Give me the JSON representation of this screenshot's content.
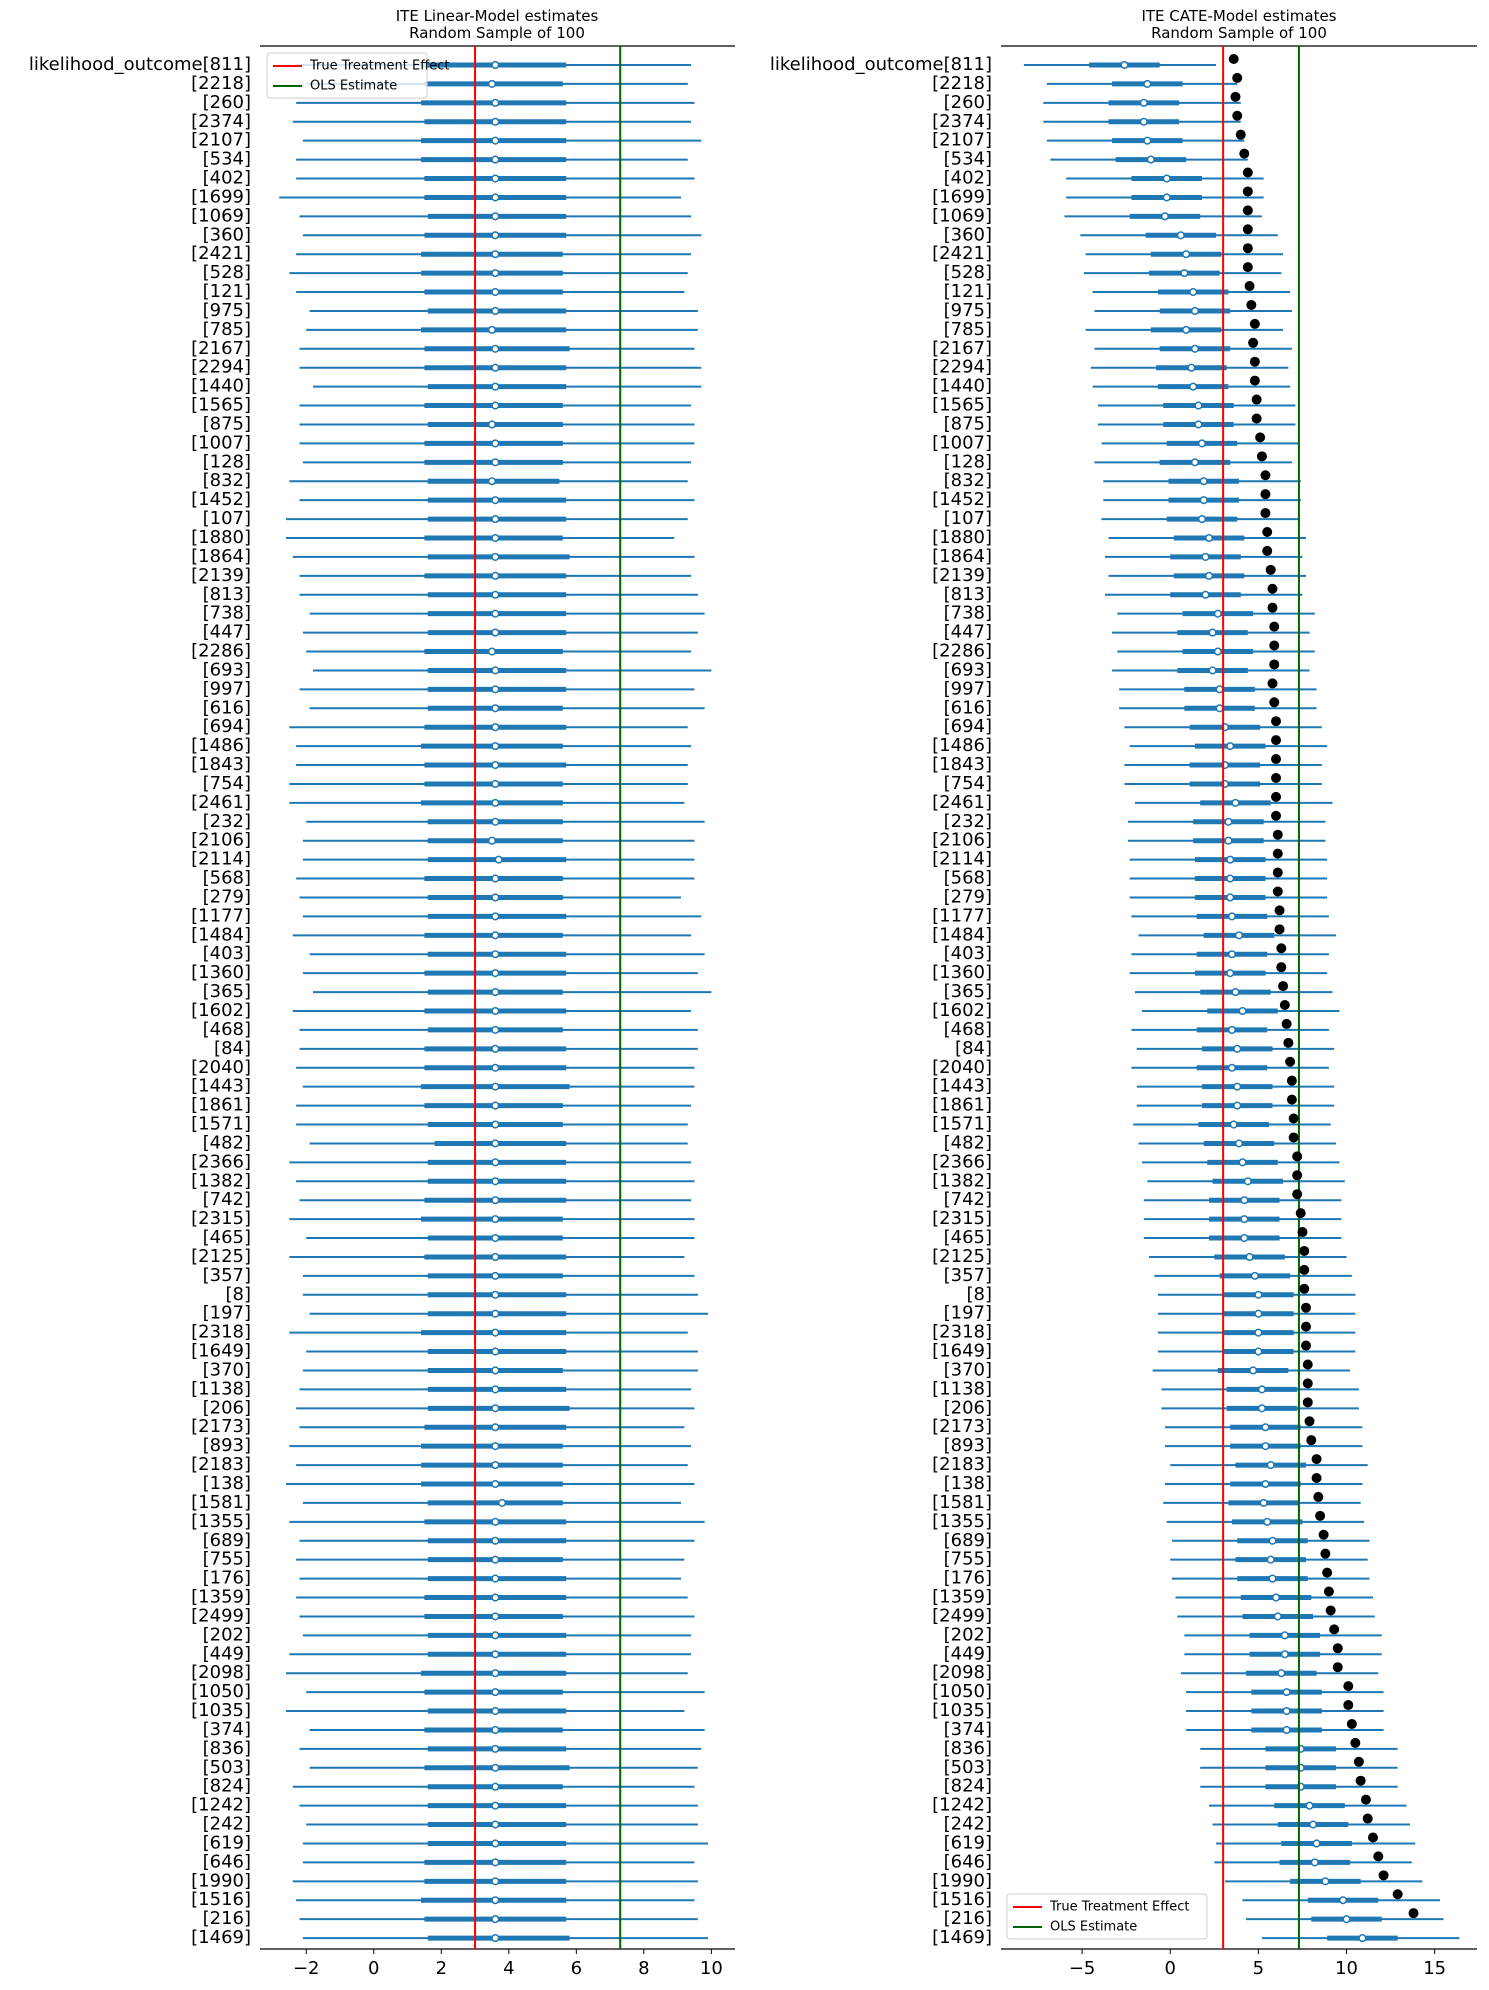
{
  "colors": {
    "interval": "#1f77b4",
    "true_effect_line": "#ff0000",
    "ols_line": "#006400",
    "true_dot": "#000000"
  },
  "legend_labels": {
    "true_effect": "True Treatment Effect",
    "ols": "OLS Estimate"
  },
  "chart_data": [
    {
      "type": "forest",
      "title": "ITE Linear-Model estimates\nRandom Sample of 100",
      "title_lines": [
        "ITE Linear-Model estimates",
        "Random Sample of 100"
      ],
      "legend_placement": "top-left",
      "xlim": [
        -3.37,
        10.7
      ],
      "xticks": [
        -2,
        0,
        2,
        4,
        6,
        8,
        10
      ],
      "xtick_labels": [
        "−2",
        "0",
        "2",
        "4",
        "6",
        "8",
        "10"
      ],
      "grid": false,
      "vlines": {
        "true_treatment_effect": 3.0,
        "ols_estimate": 7.3
      },
      "row_labels": [
        "likelihood_outcome[811]",
        "[2218]",
        "[260]",
        "[2374]",
        "[2107]",
        "[534]",
        "[402]",
        "[1699]",
        "[1069]",
        "[360]",
        "[2421]",
        "[528]",
        "[121]",
        "[975]",
        "[785]",
        "[2167]",
        "[2294]",
        "[1440]",
        "[1565]",
        "[875]",
        "[1007]",
        "[128]",
        "[832]",
        "[1452]",
        "[107]",
        "[1880]",
        "[1864]",
        "[2139]",
        "[813]",
        "[738]",
        "[447]",
        "[2286]",
        "[693]",
        "[997]",
        "[616]",
        "[694]",
        "[1486]",
        "[1843]",
        "[754]",
        "[2461]",
        "[232]",
        "[2106]",
        "[2114]",
        "[568]",
        "[279]",
        "[1177]",
        "[1484]",
        "[403]",
        "[1360]",
        "[365]",
        "[1602]",
        "[468]",
        "[84]",
        "[2040]",
        "[1443]",
        "[1861]",
        "[1571]",
        "[482]",
        "[2366]",
        "[1382]",
        "[742]",
        "[2315]",
        "[465]",
        "[2125]",
        "[357]",
        "[8]",
        "[197]",
        "[2318]",
        "[1649]",
        "[370]",
        "[1138]",
        "[206]",
        "[2173]",
        "[893]",
        "[2183]",
        "[138]",
        "[1581]",
        "[1355]",
        "[689]",
        "[755]",
        "[176]",
        "[1359]",
        "[2499]",
        "[202]",
        "[449]",
        "[2098]",
        "[1050]",
        "[1035]",
        "[374]",
        "[836]",
        "[503]",
        "[824]",
        "[1242]",
        "[242]",
        "[619]",
        "[646]",
        "[1990]",
        "[1516]",
        "[216]",
        "[1469]"
      ],
      "hdi_low": [
        -2.3,
        -2.0,
        -2.3,
        -2.4,
        -2.1,
        -2.3,
        -2.3,
        -2.8,
        -2.2,
        -2.1,
        -2.3,
        -2.5,
        -2.3,
        -1.9,
        -2.0,
        -2.2,
        -2.2,
        -1.8,
        -2.2,
        -2.2,
        -2.2,
        -2.1,
        -2.5,
        -2.2,
        -2.6,
        -2.6,
        -2.4,
        -2.2,
        -2.2,
        -1.9,
        -2.1,
        -2.0,
        -1.8,
        -2.2,
        -1.9,
        -2.5,
        -2.3,
        -2.3,
        -2.5,
        -2.5,
        -2.0,
        -2.1,
        -2.1,
        -2.3,
        -2.2,
        -2.1,
        -2.4,
        -1.9,
        -2.1,
        -1.8,
        -2.4,
        -2.2,
        -2.2,
        -2.3,
        -2.1,
        -2.3,
        -2.3,
        -1.9,
        -2.5,
        -2.3,
        -2.2,
        -2.5,
        -2.0,
        -2.5,
        -2.1,
        -2.1,
        -1.9,
        -2.5,
        -2.0,
        -2.1,
        -2.2,
        -2.3,
        -2.2,
        -2.5,
        -2.3,
        -2.6,
        -2.1,
        -2.5,
        -2.2,
        -2.3,
        -2.2,
        -2.3,
        -2.2,
        -2.1,
        -2.5,
        -2.6,
        -2.0,
        -2.6,
        -1.9,
        -2.2,
        -1.9,
        -2.4,
        -2.2,
        -2.0,
        -2.1,
        -2.1,
        -2.4,
        -2.3,
        -2.2,
        -2.1
      ],
      "q_low": [
        1.4,
        1.5,
        1.4,
        1.5,
        1.4,
        1.4,
        1.5,
        1.5,
        1.6,
        1.5,
        1.4,
        1.4,
        1.5,
        1.6,
        1.4,
        1.5,
        1.5,
        1.6,
        1.5,
        1.6,
        1.5,
        1.5,
        1.6,
        1.6,
        1.6,
        1.5,
        1.6,
        1.5,
        1.6,
        1.6,
        1.6,
        1.5,
        1.6,
        1.6,
        1.6,
        1.5,
        1.4,
        1.5,
        1.5,
        1.4,
        1.6,
        1.6,
        1.6,
        1.5,
        1.6,
        1.6,
        1.5,
        1.6,
        1.5,
        1.6,
        1.5,
        1.6,
        1.5,
        1.5,
        1.4,
        1.5,
        1.6,
        1.8,
        1.6,
        1.6,
        1.5,
        1.4,
        1.6,
        1.5,
        1.6,
        1.6,
        1.6,
        1.4,
        1.6,
        1.6,
        1.6,
        1.6,
        1.5,
        1.4,
        1.4,
        1.4,
        1.6,
        1.5,
        1.6,
        1.6,
        1.6,
        1.5,
        1.5,
        1.6,
        1.6,
        1.4,
        1.5,
        1.6,
        1.5,
        1.6,
        1.5,
        1.6,
        1.6,
        1.6,
        1.6,
        1.5,
        1.5,
        1.4,
        1.5,
        1.6
      ],
      "median": [
        3.6,
        3.5,
        3.6,
        3.6,
        3.6,
        3.6,
        3.6,
        3.6,
        3.6,
        3.6,
        3.6,
        3.6,
        3.6,
        3.6,
        3.5,
        3.6,
        3.6,
        3.6,
        3.6,
        3.5,
        3.6,
        3.6,
        3.5,
        3.6,
        3.6,
        3.6,
        3.6,
        3.6,
        3.6,
        3.6,
        3.6,
        3.5,
        3.6,
        3.6,
        3.6,
        3.6,
        3.6,
        3.6,
        3.6,
        3.6,
        3.6,
        3.5,
        3.7,
        3.6,
        3.6,
        3.6,
        3.6,
        3.6,
        3.6,
        3.6,
        3.6,
        3.6,
        3.6,
        3.6,
        3.6,
        3.6,
        3.6,
        3.6,
        3.6,
        3.6,
        3.6,
        3.6,
        3.6,
        3.6,
        3.6,
        3.6,
        3.6,
        3.6,
        3.6,
        3.6,
        3.6,
        3.6,
        3.6,
        3.6,
        3.6,
        3.6,
        3.8,
        3.6,
        3.6,
        3.6,
        3.6,
        3.6,
        3.6,
        3.6,
        3.6,
        3.6,
        3.6,
        3.6,
        3.6,
        3.6,
        3.6,
        3.6,
        3.6,
        3.6,
        3.6,
        3.6,
        3.6,
        3.6,
        3.6,
        3.6
      ],
      "q_high": [
        5.7,
        5.6,
        5.7,
        5.7,
        5.7,
        5.7,
        5.7,
        5.7,
        5.7,
        5.7,
        5.6,
        5.6,
        5.6,
        5.7,
        5.7,
        5.8,
        5.7,
        5.7,
        5.6,
        5.6,
        5.6,
        5.6,
        5.5,
        5.7,
        5.7,
        5.6,
        5.8,
        5.7,
        5.7,
        5.7,
        5.7,
        5.6,
        5.7,
        5.7,
        5.6,
        5.7,
        5.6,
        5.7,
        5.6,
        5.6,
        5.6,
        5.6,
        5.7,
        5.6,
        5.6,
        5.7,
        5.6,
        5.7,
        5.7,
        5.6,
        5.7,
        5.6,
        5.7,
        5.7,
        5.8,
        5.6,
        5.6,
        5.7,
        5.7,
        5.7,
        5.7,
        5.6,
        5.6,
        5.7,
        5.6,
        5.7,
        5.7,
        5.7,
        5.7,
        5.6,
        5.7,
        5.8,
        5.7,
        5.6,
        5.6,
        5.6,
        5.6,
        5.7,
        5.7,
        5.6,
        5.7,
        5.7,
        5.6,
        5.7,
        5.7,
        5.7,
        5.6,
        5.7,
        5.6,
        5.7,
        5.8,
        5.6,
        5.7,
        5.7,
        5.7,
        5.7,
        5.7,
        5.7,
        5.7,
        5.8
      ],
      "hdi_high": [
        9.4,
        9.3,
        9.5,
        9.4,
        9.7,
        9.3,
        9.5,
        9.1,
        9.4,
        9.7,
        9.4,
        9.3,
        9.2,
        9.6,
        9.6,
        9.5,
        9.7,
        9.7,
        9.4,
        9.5,
        9.5,
        9.4,
        9.3,
        9.5,
        9.3,
        8.9,
        9.5,
        9.4,
        9.6,
        9.8,
        9.6,
        9.4,
        10.0,
        9.5,
        9.8,
        9.3,
        9.4,
        9.3,
        9.3,
        9.2,
        9.8,
        9.5,
        9.5,
        9.5,
        9.1,
        9.7,
        9.4,
        9.8,
        9.6,
        10.0,
        9.4,
        9.6,
        9.6,
        9.5,
        9.5,
        9.4,
        9.3,
        9.3,
        9.4,
        9.5,
        9.4,
        9.5,
        9.5,
        9.2,
        9.5,
        9.6,
        9.9,
        9.3,
        9.6,
        9.6,
        9.4,
        9.5,
        9.2,
        9.4,
        9.3,
        9.5,
        9.1,
        9.8,
        9.5,
        9.2,
        9.1,
        9.3,
        9.5,
        9.4,
        9.4,
        9.3,
        9.8,
        9.2,
        9.8,
        9.7,
        9.6,
        9.5,
        9.6,
        9.6,
        9.9,
        9.5,
        9.6,
        9.5,
        9.6,
        9.9
      ]
    },
    {
      "type": "forest",
      "title_lines": [
        "ITE CATE-Model estimates",
        "Random Sample of 100"
      ],
      "legend_placement": "bottom-left",
      "xlim": [
        -9.6,
        17.4
      ],
      "xticks": [
        -5,
        0,
        5,
        10,
        15
      ],
      "xtick_labels": [
        "−5",
        "0",
        "5",
        "10",
        "15"
      ],
      "grid": false,
      "vlines": {
        "true_treatment_effect": 3.0,
        "ols_estimate": 7.3
      },
      "row_labels": [
        "likelihood_outcome[811]",
        "[2218]",
        "[260]",
        "[2374]",
        "[2107]",
        "[534]",
        "[402]",
        "[1699]",
        "[1069]",
        "[360]",
        "[2421]",
        "[528]",
        "[121]",
        "[975]",
        "[785]",
        "[2167]",
        "[2294]",
        "[1440]",
        "[1565]",
        "[875]",
        "[1007]",
        "[128]",
        "[832]",
        "[1452]",
        "[107]",
        "[1880]",
        "[1864]",
        "[2139]",
        "[813]",
        "[738]",
        "[447]",
        "[2286]",
        "[693]",
        "[997]",
        "[616]",
        "[694]",
        "[1486]",
        "[1843]",
        "[754]",
        "[2461]",
        "[232]",
        "[2106]",
        "[2114]",
        "[568]",
        "[279]",
        "[1177]",
        "[1484]",
        "[403]",
        "[1360]",
        "[365]",
        "[1602]",
        "[468]",
        "[84]",
        "[2040]",
        "[1443]",
        "[1861]",
        "[1571]",
        "[482]",
        "[2366]",
        "[1382]",
        "[742]",
        "[2315]",
        "[465]",
        "[2125]",
        "[357]",
        "[8]",
        "[197]",
        "[2318]",
        "[1649]",
        "[370]",
        "[1138]",
        "[206]",
        "[2173]",
        "[893]",
        "[2183]",
        "[138]",
        "[1581]",
        "[1355]",
        "[689]",
        "[755]",
        "[176]",
        "[1359]",
        "[2499]",
        "[202]",
        "[449]",
        "[2098]",
        "[1050]",
        "[1035]",
        "[374]",
        "[836]",
        "[503]",
        "[824]",
        "[1242]",
        "[242]",
        "[619]",
        "[646]",
        "[1990]",
        "[1516]",
        "[216]",
        "[1469]"
      ],
      "hdi_low": [
        -8.3,
        -7.0,
        -7.2,
        -7.2,
        -7.0,
        -6.8,
        -5.9,
        -5.9,
        -6.0,
        -5.1,
        -4.8,
        -4.9,
        -4.4,
        -4.3,
        -4.8,
        -4.3,
        -4.5,
        -4.4,
        -4.1,
        -4.1,
        -3.9,
        -4.3,
        -3.8,
        -3.8,
        -3.9,
        -3.5,
        -3.7,
        -3.5,
        -3.7,
        -3.0,
        -3.3,
        -3.0,
        -3.3,
        -2.9,
        -2.9,
        -2.6,
        -2.3,
        -2.6,
        -2.6,
        -2.0,
        -2.4,
        -2.4,
        -2.3,
        -2.3,
        -2.3,
        -2.2,
        -1.8,
        -2.2,
        -2.3,
        -2.0,
        -1.6,
        -2.2,
        -1.9,
        -2.2,
        -1.9,
        -1.9,
        -2.1,
        -1.8,
        -1.6,
        -1.3,
        -1.5,
        -1.5,
        -1.5,
        -1.2,
        -0.9,
        -0.7,
        -0.7,
        -0.7,
        -0.7,
        -1.0,
        -0.5,
        -0.5,
        -0.3,
        -0.3,
        0.0,
        -0.3,
        -0.4,
        -0.2,
        0.1,
        0.0,
        0.1,
        0.3,
        0.4,
        0.8,
        0.8,
        0.6,
        0.9,
        0.9,
        0.9,
        1.7,
        1.7,
        1.7,
        2.2,
        2.4,
        2.6,
        2.5,
        3.1,
        4.1,
        4.3,
        5.2
      ],
      "q_low": [
        -4.6,
        -3.3,
        -3.5,
        -3.5,
        -3.3,
        -3.1,
        -2.2,
        -2.2,
        -2.3,
        -1.4,
        -1.1,
        -1.2,
        -0.7,
        -0.6,
        -1.1,
        -0.6,
        -0.8,
        -0.7,
        -0.4,
        -0.4,
        -0.2,
        -0.6,
        -0.1,
        -0.1,
        -0.2,
        0.2,
        0.0,
        0.2,
        0.0,
        0.7,
        0.4,
        0.7,
        0.4,
        0.8,
        0.8,
        1.1,
        1.4,
        1.1,
        1.1,
        1.7,
        1.3,
        1.3,
        1.4,
        1.4,
        1.4,
        1.5,
        1.9,
        1.5,
        1.4,
        1.7,
        2.1,
        1.5,
        1.8,
        1.5,
        1.8,
        1.8,
        1.6,
        1.9,
        2.1,
        2.4,
        2.2,
        2.2,
        2.2,
        2.5,
        2.8,
        3.0,
        3.0,
        3.0,
        3.0,
        2.7,
        3.2,
        3.2,
        3.4,
        3.4,
        3.7,
        3.4,
        3.3,
        3.5,
        3.8,
        3.7,
        3.8,
        4.0,
        4.1,
        4.5,
        4.5,
        4.3,
        4.6,
        4.6,
        4.6,
        5.4,
        5.4,
        5.4,
        5.9,
        6.1,
        6.3,
        6.2,
        6.8,
        7.8,
        8.0,
        8.9
      ],
      "median": [
        -2.6,
        -1.3,
        -1.5,
        -1.5,
        -1.3,
        -1.1,
        -0.2,
        -0.2,
        -0.3,
        0.6,
        0.9,
        0.8,
        1.3,
        1.4,
        0.9,
        1.4,
        1.2,
        1.3,
        1.6,
        1.6,
        1.8,
        1.4,
        1.9,
        1.9,
        1.8,
        2.2,
        2.0,
        2.2,
        2.0,
        2.7,
        2.4,
        2.7,
        2.4,
        2.8,
        2.8,
        3.1,
        3.4,
        3.1,
        3.1,
        3.7,
        3.3,
        3.3,
        3.4,
        3.4,
        3.4,
        3.5,
        3.9,
        3.5,
        3.4,
        3.7,
        4.1,
        3.5,
        3.8,
        3.5,
        3.8,
        3.8,
        3.6,
        3.9,
        4.1,
        4.4,
        4.2,
        4.2,
        4.2,
        4.5,
        4.8,
        5.0,
        5.0,
        5.0,
        5.0,
        4.7,
        5.2,
        5.2,
        5.4,
        5.4,
        5.7,
        5.4,
        5.3,
        5.5,
        5.8,
        5.7,
        5.8,
        6.0,
        6.1,
        6.5,
        6.5,
        6.3,
        6.6,
        6.6,
        6.6,
        7.4,
        7.4,
        7.4,
        7.9,
        8.1,
        8.3,
        8.2,
        8.8,
        9.8,
        10.0,
        10.9
      ],
      "q_high": [
        -0.6,
        0.7,
        0.5,
        0.5,
        0.7,
        0.9,
        1.8,
        1.8,
        1.7,
        2.6,
        2.9,
        2.8,
        3.3,
        3.4,
        2.9,
        3.4,
        3.2,
        3.3,
        3.6,
        3.6,
        3.8,
        3.4,
        3.9,
        3.9,
        3.8,
        4.2,
        4.0,
        4.2,
        4.0,
        4.7,
        4.4,
        4.7,
        4.4,
        4.8,
        4.8,
        5.1,
        5.4,
        5.1,
        5.1,
        5.7,
        5.3,
        5.3,
        5.4,
        5.4,
        5.4,
        5.5,
        5.9,
        5.5,
        5.4,
        5.7,
        6.1,
        5.5,
        5.8,
        5.5,
        5.8,
        5.8,
        5.6,
        5.9,
        6.1,
        6.4,
        6.2,
        6.2,
        6.2,
        6.5,
        6.8,
        7.0,
        7.0,
        7.0,
        7.0,
        6.7,
        7.2,
        7.2,
        7.4,
        7.4,
        7.7,
        7.4,
        7.3,
        7.5,
        7.8,
        7.7,
        7.8,
        8.0,
        8.1,
        8.5,
        8.5,
        8.3,
        8.6,
        8.6,
        8.6,
        9.4,
        9.4,
        9.4,
        9.9,
        10.1,
        10.3,
        10.2,
        10.8,
        11.8,
        12.0,
        12.9
      ],
      "hdi_high": [
        2.6,
        3.8,
        4.0,
        4.0,
        4.2,
        4.4,
        5.3,
        5.3,
        5.2,
        6.1,
        6.4,
        6.3,
        6.8,
        6.9,
        6.4,
        6.9,
        6.7,
        6.8,
        7.1,
        7.1,
        7.3,
        6.9,
        7.4,
        7.4,
        7.3,
        7.7,
        7.5,
        7.7,
        7.5,
        8.2,
        7.9,
        8.2,
        7.9,
        8.3,
        8.3,
        8.6,
        8.9,
        8.6,
        8.6,
        9.2,
        8.8,
        8.8,
        8.9,
        8.9,
        8.9,
        9.0,
        9.4,
        9.0,
        8.9,
        9.2,
        9.6,
        9.0,
        9.3,
        9.0,
        9.3,
        9.3,
        9.1,
        9.4,
        9.6,
        9.9,
        9.7,
        9.7,
        9.7,
        10.0,
        10.3,
        10.5,
        10.5,
        10.5,
        10.5,
        10.2,
        10.7,
        10.7,
        10.9,
        10.9,
        11.2,
        10.9,
        10.8,
        11.0,
        11.3,
        11.2,
        11.3,
        11.5,
        11.6,
        12.0,
        12.0,
        11.8,
        12.1,
        12.1,
        12.1,
        12.9,
        12.9,
        12.9,
        13.4,
        13.6,
        13.9,
        13.7,
        14.3,
        15.3,
        15.5,
        16.4
      ],
      "true_effect_points": [
        3.6,
        3.8,
        3.7,
        3.8,
        4.0,
        4.2,
        4.4,
        4.4,
        4.4,
        4.4,
        4.4,
        4.4,
        4.5,
        4.6,
        4.8,
        4.7,
        4.8,
        4.8,
        4.9,
        4.9,
        5.1,
        5.2,
        5.4,
        5.4,
        5.4,
        5.5,
        5.5,
        5.7,
        5.8,
        5.8,
        5.9,
        5.9,
        5.9,
        5.8,
        5.9,
        6.0,
        6.0,
        6.0,
        6.0,
        6.0,
        6.0,
        6.1,
        6.1,
        6.1,
        6.1,
        6.2,
        6.2,
        6.3,
        6.3,
        6.4,
        6.5,
        6.6,
        6.7,
        6.8,
        6.9,
        6.9,
        7.0,
        7.0,
        7.2,
        7.2,
        7.2,
        7.4,
        7.5,
        7.6,
        7.6,
        7.6,
        7.7,
        7.7,
        7.7,
        7.8,
        7.8,
        7.8,
        7.9,
        8.0,
        8.3,
        8.3,
        8.4,
        8.5,
        8.7,
        8.8,
        8.9,
        9.0,
        9.1,
        9.3,
        9.5,
        9.5,
        10.1,
        10.1,
        10.3,
        10.5,
        10.7,
        10.8,
        11.1,
        11.2,
        11.5,
        11.8,
        12.1,
        12.9,
        13.8,
        null
      ]
    }
  ]
}
